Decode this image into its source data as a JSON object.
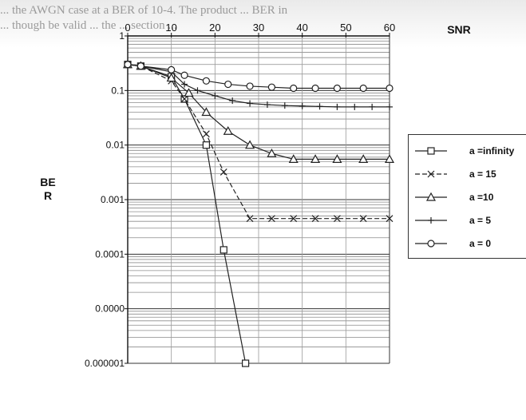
{
  "header": {
    "line1": "... the AWGN case at a BER of 10-4. The product ... BER in",
    "line2": "... though be valid ... the ... section ..."
  },
  "chart_data": {
    "type": "line",
    "xlabel": "SNR",
    "ylabel": "BE R",
    "xlim": [
      0,
      60
    ],
    "x_ticks": [
      "0",
      "10",
      "20",
      "30",
      "40",
      "50",
      "60"
    ],
    "y_scale": "log",
    "ylim": [
      1e-06,
      1
    ],
    "y_ticks": [
      {
        "value": 1,
        "label": "1"
      },
      {
        "value": 0.1,
        "label": "0.1"
      },
      {
        "value": 0.01,
        "label": "0.01"
      },
      {
        "value": 0.001,
        "label": "0.001"
      },
      {
        "value": 0.0001,
        "label": "0.0001"
      },
      {
        "value": 1e-05,
        "label": "0.0000"
      },
      {
        "value": 1e-06,
        "label": "0.000001"
      }
    ],
    "grid": true,
    "legend_position": "right",
    "series": [
      {
        "name": "a =infinity",
        "marker": "square",
        "dash": "solid",
        "x": [
          0,
          3,
          10,
          13,
          18,
          22,
          27
        ],
        "y": [
          0.3,
          0.28,
          0.18,
          0.07,
          0.01,
          0.00012,
          1e-06
        ]
      },
      {
        "name": "a = 15",
        "marker": "x",
        "dash": "dashed",
        "x": [
          0,
          3,
          10,
          13,
          18,
          22,
          28,
          33,
          38,
          43,
          48,
          54,
          60
        ],
        "y": [
          0.3,
          0.28,
          0.15,
          0.07,
          0.016,
          0.0032,
          0.00045,
          0.00045,
          0.00045,
          0.00045,
          0.00045,
          0.00045,
          0.00045
        ]
      },
      {
        "name": "a =10",
        "marker": "triangle",
        "dash": "solid",
        "x": [
          0,
          3,
          10,
          14,
          18,
          23,
          28,
          33,
          38,
          43,
          48,
          54,
          60
        ],
        "y": [
          0.3,
          0.28,
          0.17,
          0.09,
          0.04,
          0.018,
          0.01,
          0.007,
          0.0055,
          0.0055,
          0.0055,
          0.0055,
          0.0055
        ]
      },
      {
        "name": "a = 5",
        "marker": "plus",
        "dash": "solid",
        "x": [
          0,
          3,
          10,
          13,
          16,
          20,
          24,
          28,
          32,
          36,
          40,
          44,
          48,
          52,
          56,
          60
        ],
        "y": [
          0.3,
          0.28,
          0.22,
          0.13,
          0.1,
          0.08,
          0.065,
          0.058,
          0.055,
          0.053,
          0.052,
          0.051,
          0.05,
          0.05,
          0.05,
          0.05
        ]
      },
      {
        "name": "a = 0",
        "marker": "circle",
        "dash": "solid",
        "x": [
          0,
          3,
          10,
          13,
          18,
          23,
          28,
          33,
          38,
          43,
          48,
          54,
          60
        ],
        "y": [
          0.3,
          0.28,
          0.24,
          0.19,
          0.15,
          0.13,
          0.12,
          0.115,
          0.11,
          0.11,
          0.11,
          0.11,
          0.11
        ]
      }
    ]
  }
}
